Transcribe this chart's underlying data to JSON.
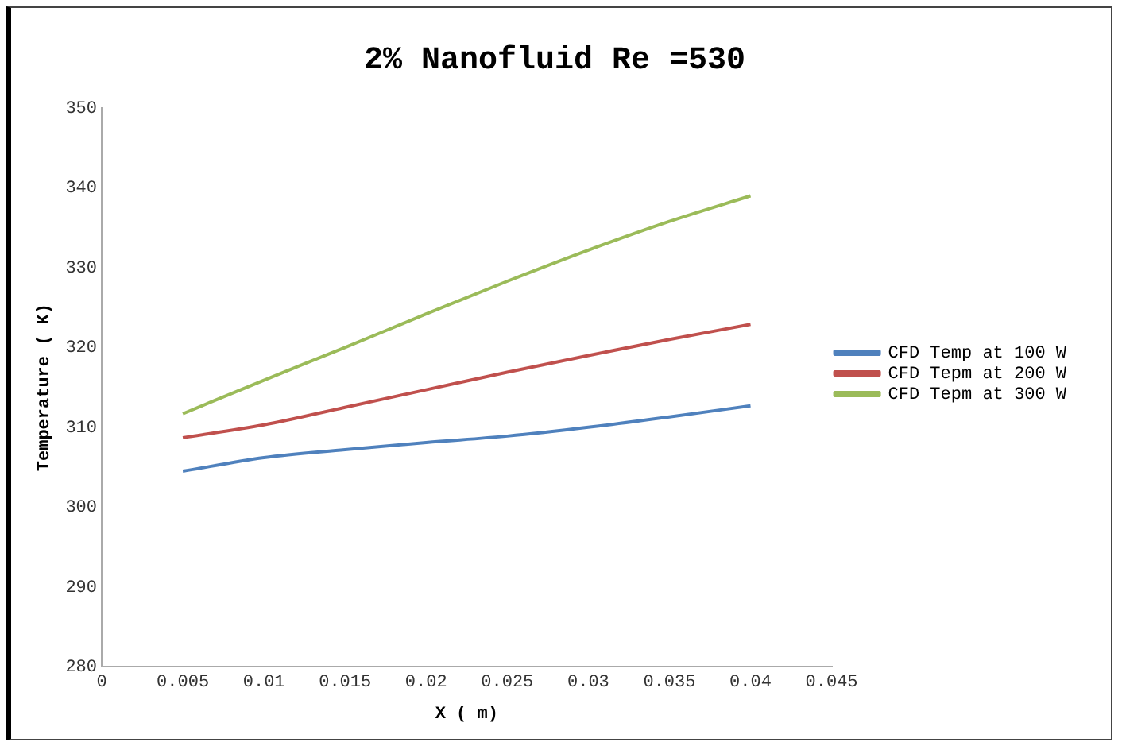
{
  "chart_data": {
    "type": "line",
    "title": "2% Nanofluid Re =530",
    "xlabel": "X ( m)",
    "ylabel": "Temperature ( K)",
    "x": [
      0.005,
      0.01,
      0.015,
      0.02,
      0.025,
      0.03,
      0.035,
      0.04
    ],
    "series": [
      {
        "name": "CFD Temp at 100 W",
        "color": "#4f81bd",
        "values": [
          304.5,
          306.2,
          307.2,
          308.1,
          308.9,
          310.0,
          311.3,
          312.7
        ]
      },
      {
        "name": "CFD Tepm at 200 W",
        "color": "#c0504d",
        "values": [
          308.7,
          310.3,
          312.5,
          314.7,
          316.9,
          319.0,
          321.0,
          322.9
        ]
      },
      {
        "name": "CFD Tepm at 300 W",
        "color": "#9bbb59",
        "values": [
          311.7,
          315.9,
          320.0,
          324.2,
          328.3,
          332.2,
          335.8,
          339.0
        ]
      }
    ],
    "xlim": [
      0,
      0.045
    ],
    "xticks": [
      0,
      0.005,
      0.01,
      0.015,
      0.02,
      0.025,
      0.03,
      0.035,
      0.04,
      0.045
    ],
    "ylim": [
      280,
      350
    ],
    "yticks": [
      280,
      290,
      300,
      310,
      320,
      330,
      340,
      350
    ],
    "grid": false,
    "legend": "right",
    "marker": "none",
    "line_style": "solid"
  }
}
